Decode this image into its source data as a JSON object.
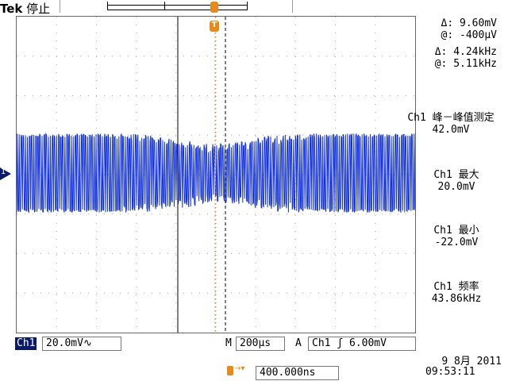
{
  "header": {
    "brand": "Tek",
    "status": "停止"
  },
  "cursor_readout": {
    "delta_v": "9.60mV",
    "at_v": "-400µV",
    "delta_f": "4.24kHz",
    "at_f": "5.11kHz",
    "delta_label": "Δ:",
    "at_label": "@:"
  },
  "measurements": [
    {
      "label": "Ch1 峰－峰值测定",
      "value": "42.0mV"
    },
    {
      "label": "Ch1 最大",
      "value": "20.0mV"
    },
    {
      "label": "Ch1 最小",
      "value": "-22.0mV"
    },
    {
      "label": "Ch1 频率",
      "value": "43.86kHz"
    }
  ],
  "bottom": {
    "channel": "Ch1",
    "scale": "20.0mV∿",
    "timebase_prefix": "M",
    "timebase": "200µs",
    "trigger_prefix": "A",
    "trigger_source": "Ch1",
    "trigger_slope": "ʃ",
    "trigger_level": "6.00mV",
    "trigger_position": "400.000ns",
    "date": "9 8月  2011",
    "time": "09:53:11",
    "channel_marker": "1",
    "trigger_marker": "T"
  },
  "colors": {
    "trace": "#1030e0",
    "marker": "#e88a1a",
    "channel_bg": "#0a1a6a"
  }
}
